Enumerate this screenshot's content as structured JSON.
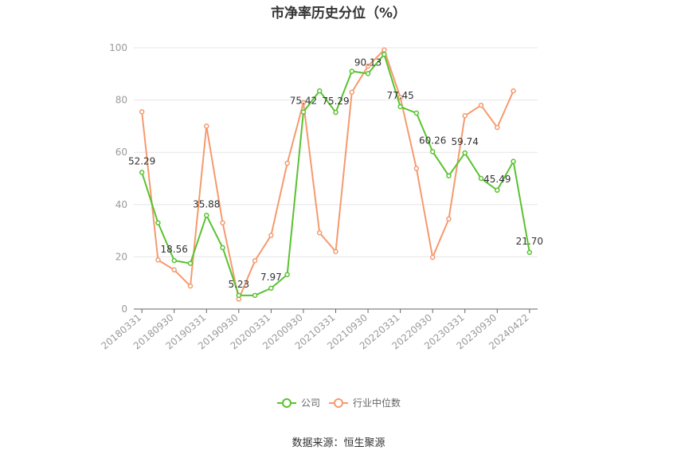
{
  "chart_data": {
    "type": "line",
    "title": "市净率历史分位（%）",
    "source_note": "数据来源：恒生聚源",
    "ylim": [
      0,
      100
    ],
    "yticks": [
      0,
      20,
      40,
      60,
      80,
      100
    ],
    "grid": true,
    "legend_position": "bottom",
    "x_tick_labels": [
      "20180331",
      "20180930",
      "20190331",
      "20190930",
      "20200331",
      "20200930",
      "20210331",
      "20210930",
      "20220331",
      "20220930",
      "20230331",
      "20230930",
      "20240422"
    ],
    "x": [
      "20180331",
      "20180630",
      "20180930",
      "20181231",
      "20190331",
      "20190630",
      "20190930",
      "20191231",
      "20200331",
      "20200630",
      "20200930",
      "20201231",
      "20210331",
      "20210630",
      "20210930",
      "20211231",
      "20220331",
      "20220630",
      "20220930",
      "20221231",
      "20230331",
      "20230630",
      "20230930",
      "20231231",
      "20240422"
    ],
    "series": [
      {
        "name": "公司",
        "color": "#5ac230",
        "values": [
          52.29,
          33.0,
          18.56,
          17.5,
          35.88,
          23.5,
          5.23,
          5.23,
          7.97,
          13.2,
          75.42,
          83.5,
          75.29,
          91.0,
          90.13,
          97.5,
          77.45,
          75.0,
          60.26,
          51.0,
          59.74,
          50.0,
          45.49,
          56.5,
          21.7
        ],
        "labels": {
          "0": "52.29",
          "2": "18.56",
          "4": "35.88",
          "6": "5.23",
          "8": "7.97",
          "10": "75.42",
          "12": "75.29",
          "14": "90.13",
          "16": "77.45",
          "18": "60.26",
          "20": "59.74",
          "22": "45.49",
          "24": "21.70"
        }
      },
      {
        "name": "行业中位数",
        "color": "#f59a6e",
        "values": [
          75.5,
          18.8,
          15.0,
          8.8,
          70.0,
          33.0,
          3.8,
          18.5,
          28.2,
          55.8,
          79.0,
          29.2,
          22.0,
          83.0,
          93.0,
          99.2,
          81.0,
          53.8,
          19.8,
          34.5,
          74.0,
          78.0,
          69.5,
          83.5,
          null
        ]
      }
    ]
  }
}
